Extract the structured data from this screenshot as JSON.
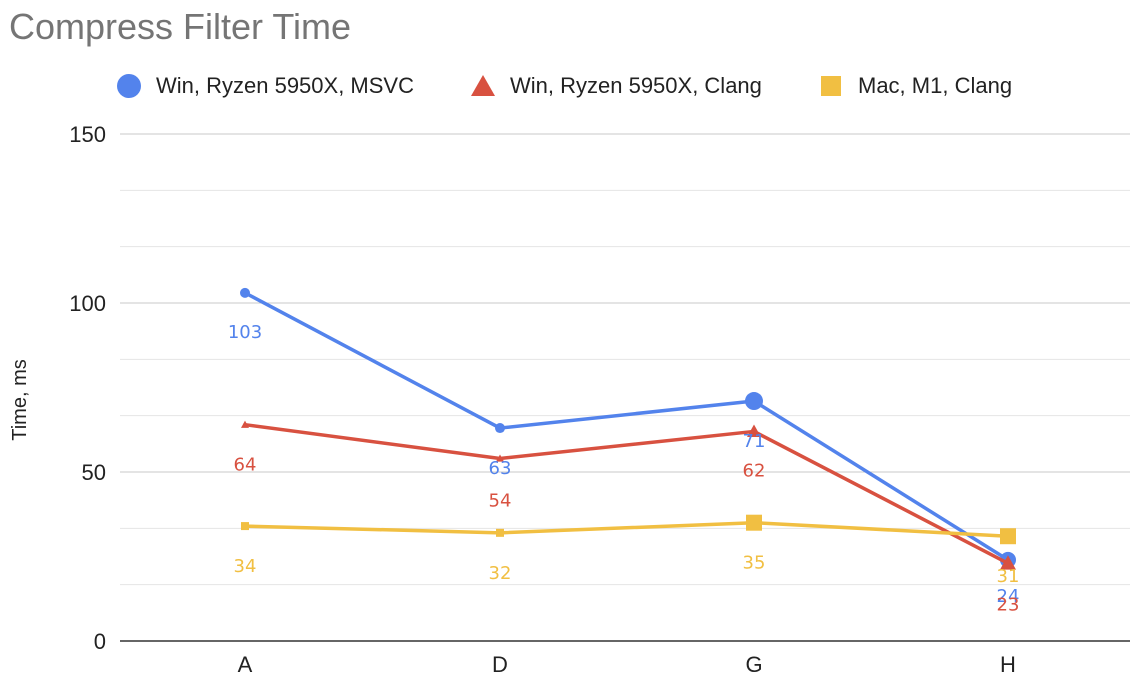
{
  "chart_data": {
    "type": "line",
    "title": "Compress Filter Time",
    "ylabel": "Time, ms",
    "xlabel": "",
    "categories": [
      "A",
      "D",
      "G",
      "H"
    ],
    "ylim": [
      0,
      150
    ],
    "yticks": [
      "0",
      "50",
      "100",
      "150"
    ],
    "grid": true,
    "legend_position": "top",
    "series": [
      {
        "name": "Win, Ryzen 5950X, MSVC",
        "color": "#5383EC",
        "marker": "circle",
        "values": [
          103,
          63,
          71,
          24
        ],
        "labels": [
          "103",
          "63",
          "71",
          "24"
        ]
      },
      {
        "name": "Win, Ryzen 5950X, Clang",
        "color": "#D85140",
        "marker": "triangle",
        "values": [
          64,
          54,
          62,
          23
        ],
        "labels": [
          "64",
          "54",
          "62",
          "23"
        ]
      },
      {
        "name": "Mac, M1, Clang",
        "color": "#F1BF42",
        "marker": "square",
        "values": [
          34,
          32,
          35,
          31
        ],
        "labels": [
          "34",
          "32",
          "35",
          "31"
        ]
      }
    ]
  }
}
